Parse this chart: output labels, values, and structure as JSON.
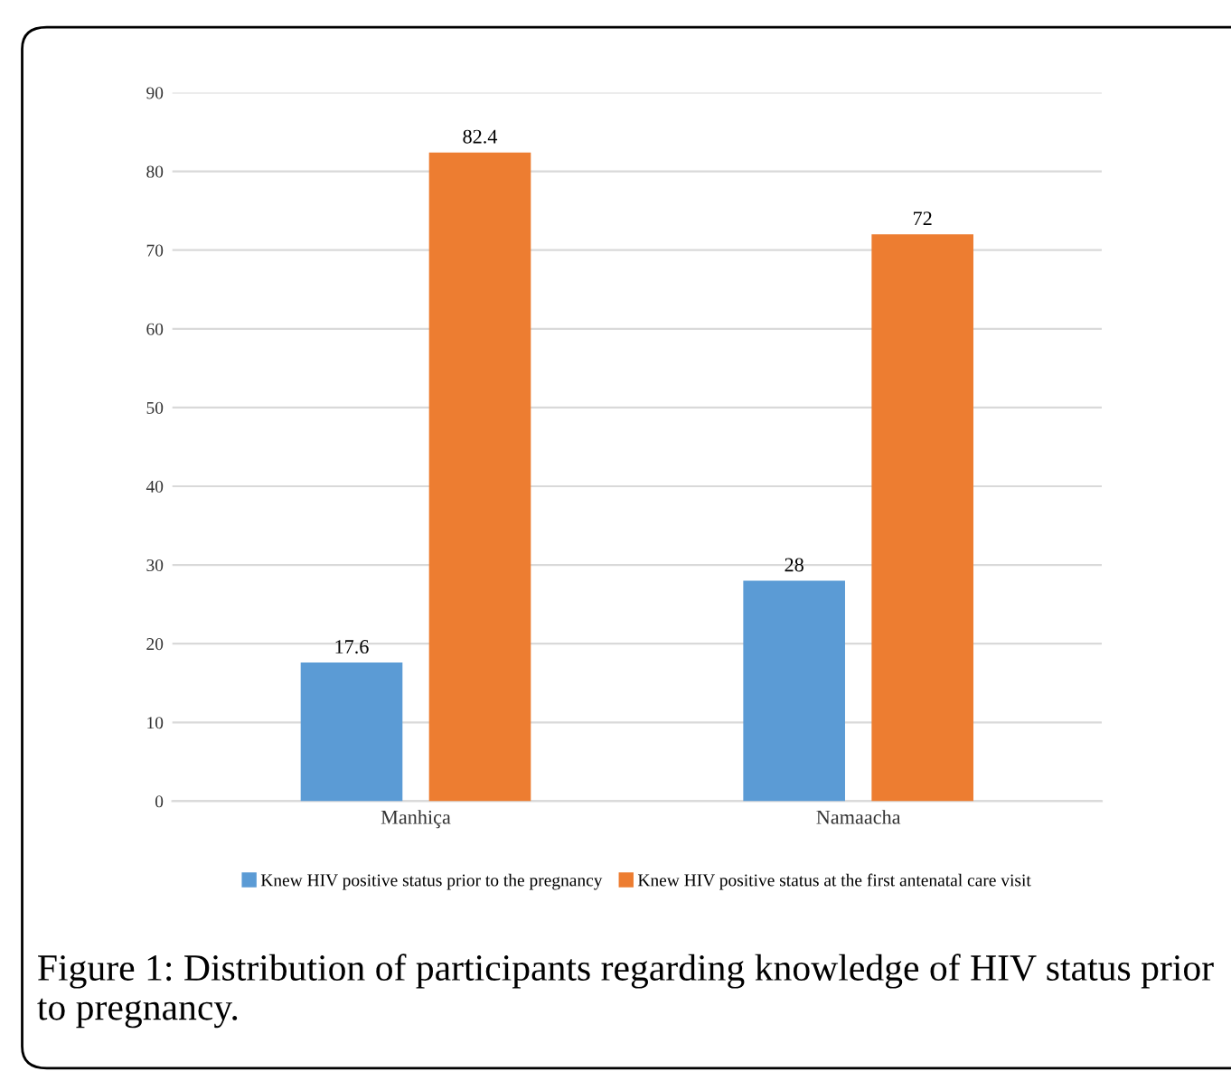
{
  "chart_data": {
    "type": "bar",
    "categories": [
      "Manhiça",
      "Namaacha"
    ],
    "series": [
      {
        "name": "Knew HIV positive status prior to the pregnancy",
        "color": "#5b9bd5",
        "values": [
          17.6,
          28
        ]
      },
      {
        "name": "Knew HIV positive status at the first antenatal care visit",
        "color": "#ed7d31",
        "values": [
          82.4,
          72
        ]
      }
    ],
    "ylim": [
      0,
      90
    ],
    "yticks": [
      0,
      10,
      20,
      30,
      40,
      50,
      60,
      70,
      80,
      90
    ],
    "grid": "y",
    "legend": "bottom",
    "data_labels": true,
    "annotations": [
      "Figure 1: Distribution of participants regarding knowledge of HIV status prior to pregnancy."
    ]
  }
}
